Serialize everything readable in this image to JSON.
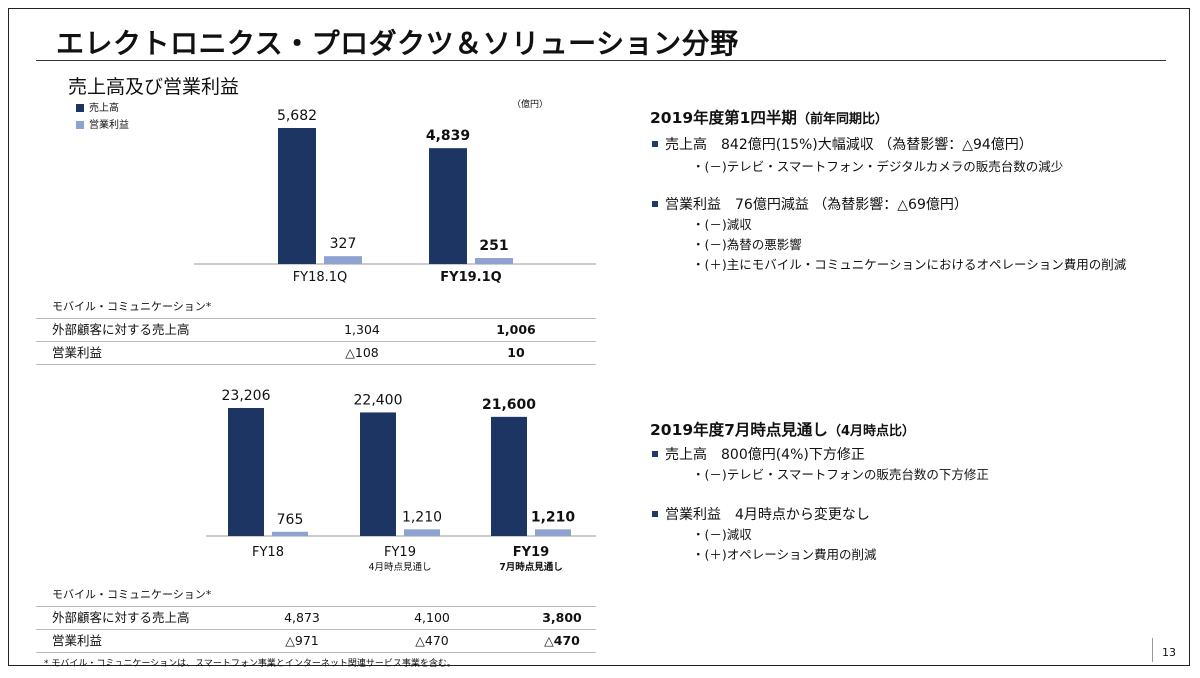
{
  "header": {
    "title": "エレクトロニクス・プロダクツ＆ソリューション分野",
    "section_title": "売上高及び営業利益"
  },
  "legend": [
    {
      "label": "売上高",
      "color": "#1d3562"
    },
    {
      "label": "営業利益",
      "color": "#8ea3cf"
    }
  ],
  "unit": "（億円）",
  "colors": {
    "sales": "#1d3562",
    "profit": "#8ea3cf"
  },
  "chart_data": [
    {
      "type": "bar",
      "categories": [
        "FY18.1Q",
        "FY19.1Q"
      ],
      "series": [
        {
          "name": "売上高",
          "values": [
            5682,
            4839
          ],
          "labels": [
            "5,682",
            "4,839"
          ]
        },
        {
          "name": "営業利益",
          "values": [
            327,
            251
          ],
          "labels": [
            "327",
            "251"
          ]
        }
      ],
      "bold_category_index": 1
    },
    {
      "type": "bar",
      "categories": [
        "FY18",
        "FY19",
        "FY19"
      ],
      "category_sublabels": [
        "",
        "4月時点見通し",
        "7月時点見通し"
      ],
      "series": [
        {
          "name": "売上高",
          "values": [
            23206,
            22400,
            21600
          ],
          "labels": [
            "23,206",
            "22,400",
            "21,600"
          ]
        },
        {
          "name": "営業利益",
          "values": [
            765,
            1210,
            1210
          ],
          "labels": [
            "765",
            "1,210",
            "1,210"
          ]
        }
      ],
      "bold_category_index": 2
    }
  ],
  "table1": {
    "segment": "モバイル・コミュニケーション*",
    "rows": [
      {
        "label": "外部顧客に対する売上高",
        "v1": "1,304",
        "v2": "1,006"
      },
      {
        "label": "営業利益",
        "v1": "△108",
        "v2": "10"
      }
    ]
  },
  "table2": {
    "segment": "モバイル・コミュニケーション*",
    "rows": [
      {
        "label": "外部顧客に対する売上高",
        "v1": "4,873",
        "v2": "4,100",
        "v3": "3,800"
      },
      {
        "label": "営業利益",
        "v1": "△971",
        "v2": "△470",
        "v3": "△470"
      }
    ]
  },
  "notes": {
    "q1_title": "2019年度第1四半期",
    "q1_title_suffix": "（前年同期比）",
    "q1_sales": "売上高　842億円(15%)大幅減収 （為替影響：△94億円）",
    "q1_sales_sub1": "・(－)テレビ・スマートフォン・デジタルカメラの販売台数の減少",
    "q1_op": "営業利益　76億円減益 （為替影響：△69億円）",
    "q1_op_sub1": "・(－)減収",
    "q1_op_sub2": "・(－)為替の悪影響",
    "q1_op_sub3": "・(＋)主にモバイル・コミュニケーションにおけるオペレーション費用の削減",
    "fy_title": "2019年度7月時点見通し",
    "fy_title_suffix": "（4月時点比）",
    "fy_sales": "売上高　800億円(4%)下方修正",
    "fy_sales_sub1": "・(－)テレビ・スマートフォンの販売台数の下方修正",
    "fy_op": "営業利益　4月時点から変更なし",
    "fy_op_sub1": "・(－)減収",
    "fy_op_sub2": "・(＋)オペレーション費用の削減"
  },
  "footnote": "* モバイル・コミュニケーションは、スマートフォン事業とインターネット関連サービス事業を含む。",
  "page_number": "13"
}
